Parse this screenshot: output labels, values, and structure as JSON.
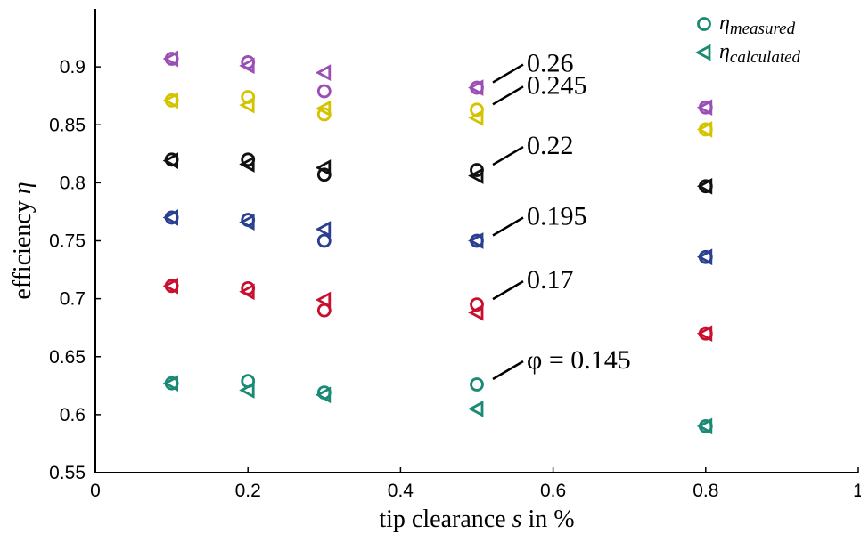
{
  "chart_data": {
    "type": "scatter",
    "xlabel_text": "tip clearance ",
    "xlabel_var": "s",
    "xlabel_suffix": " in %",
    "ylabel_text": "efficiency ",
    "ylabel_var": "η",
    "xlim": [
      0,
      1
    ],
    "ylim": [
      0.55,
      0.95
    ],
    "xticks": [
      0,
      0.2,
      0.4,
      0.6,
      0.8,
      1
    ],
    "xtick_labels": [
      "0",
      "0.2",
      "0.4",
      "0.6",
      "0.8",
      "1"
    ],
    "yticks": [
      0.55,
      0.6,
      0.65,
      0.7,
      0.75,
      0.8,
      0.85,
      0.9
    ],
    "ytick_labels": [
      "0.55",
      "0.6",
      "0.65",
      "0.7",
      "0.75",
      "0.8",
      "0.85",
      "0.9"
    ],
    "grid": false,
    "legend": {
      "placement": "top-right",
      "entries": [
        {
          "symbol": "η",
          "subscript": "measured",
          "marker": "circle",
          "color": "#1a8a74"
        },
        {
          "symbol": "η",
          "subscript": "calculated",
          "marker": "triangle-left",
          "color": "#1a8a74"
        }
      ]
    },
    "x": [
      0.1,
      0.2,
      0.3,
      0.5,
      0.8
    ],
    "groups": [
      {
        "label": "φ = 0.145",
        "color": "#1a8a74",
        "measured": [
          0.627,
          0.629,
          0.619,
          0.626,
          0.59
        ],
        "calculated": [
          0.627,
          0.621,
          0.617,
          0.605,
          0.59
        ]
      },
      {
        "label": "0.17",
        "color": "#c8102e",
        "measured": [
          0.711,
          0.709,
          0.69,
          0.695,
          0.67
        ],
        "calculated": [
          0.711,
          0.706,
          0.699,
          0.688,
          0.67
        ]
      },
      {
        "label": "0.195",
        "color": "#2a3f8f",
        "measured": [
          0.77,
          0.768,
          0.75,
          0.75,
          0.736
        ],
        "calculated": [
          0.77,
          0.766,
          0.76,
          0.75,
          0.736
        ]
      },
      {
        "label": "0.22",
        "color": "#111111",
        "measured": [
          0.82,
          0.82,
          0.807,
          0.811,
          0.797
        ],
        "calculated": [
          0.819,
          0.816,
          0.813,
          0.806,
          0.797
        ]
      },
      {
        "label": "0.245",
        "color": "#d4c400",
        "measured": [
          0.871,
          0.874,
          0.859,
          0.863,
          0.846
        ],
        "calculated": [
          0.871,
          0.867,
          0.864,
          0.856,
          0.846
        ]
      },
      {
        "label": "0.26",
        "color": "#9b4fb5",
        "measured": [
          0.907,
          0.904,
          0.879,
          0.882,
          0.865
        ],
        "calculated": [
          0.907,
          0.901,
          0.895,
          0.882,
          0.865
        ]
      }
    ]
  }
}
